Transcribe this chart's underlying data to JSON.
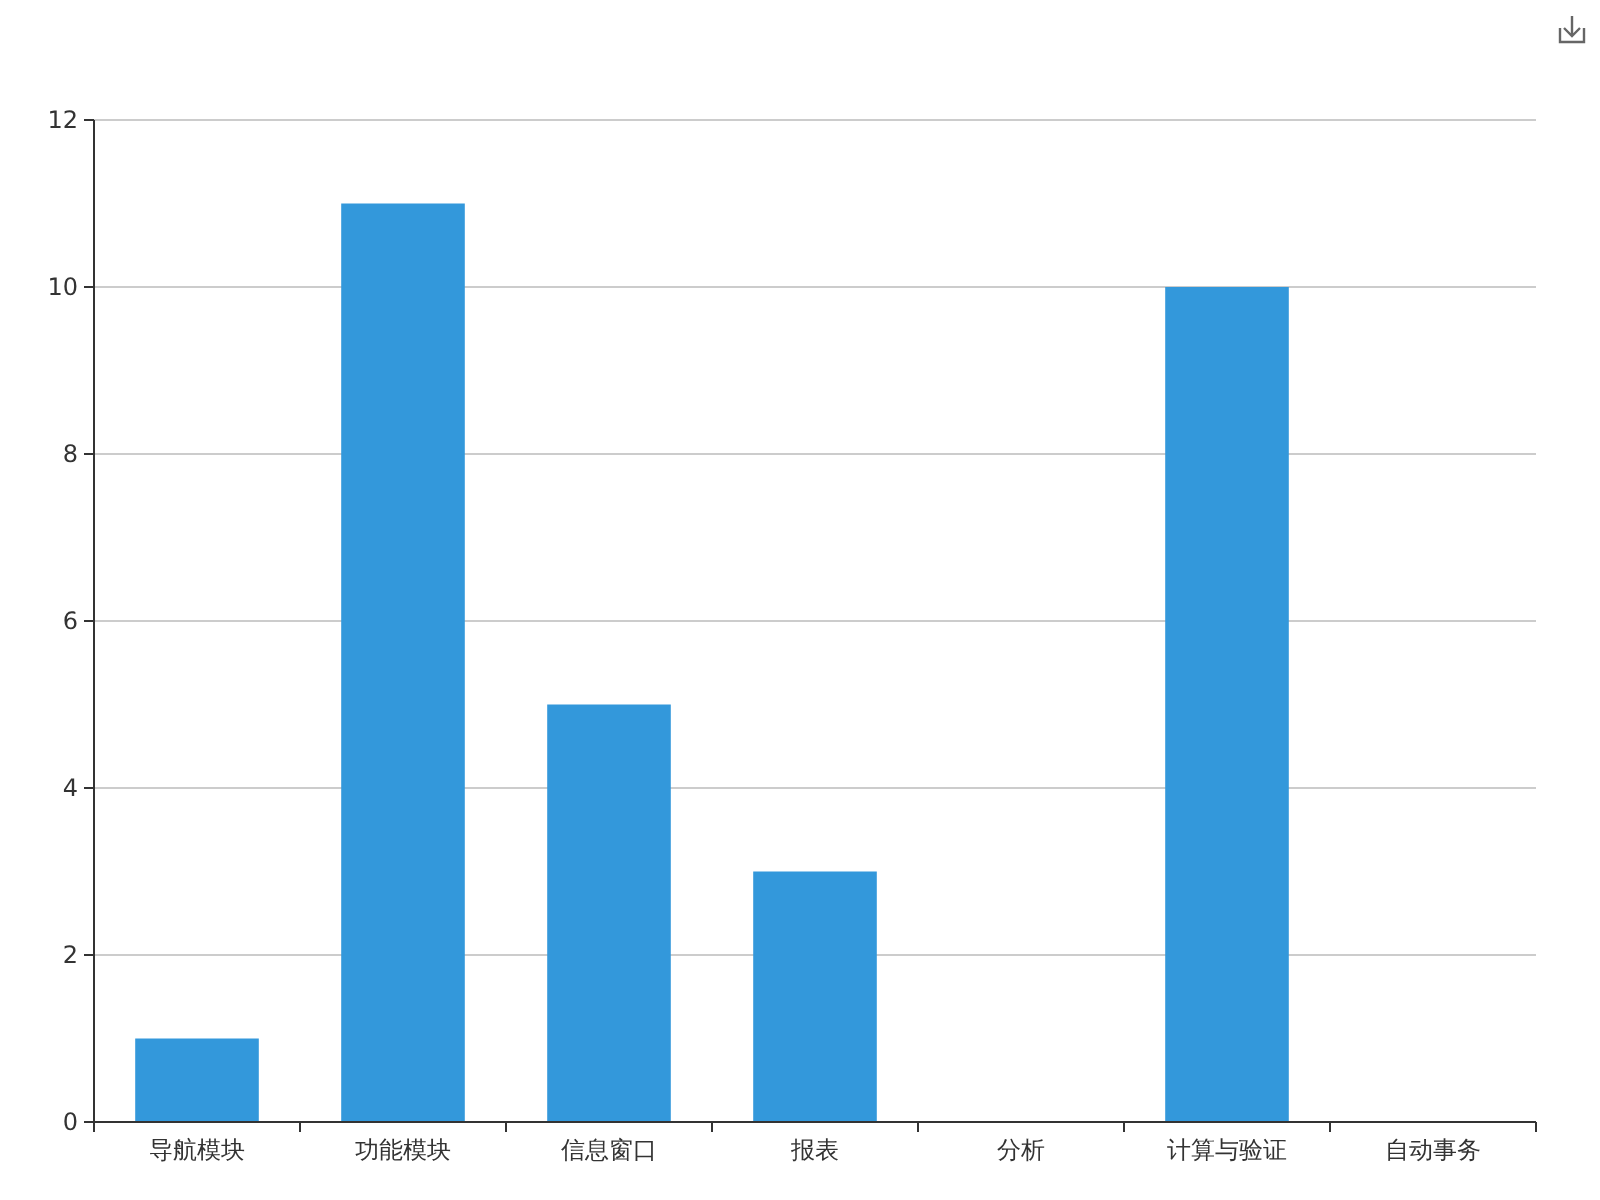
{
  "chart_data": {
    "type": "bar",
    "categories": [
      "导航模块",
      "功能模块",
      "信息窗口",
      "报表",
      "分析",
      "计算与验证",
      "自动事务"
    ],
    "values": [
      1,
      11,
      5,
      3,
      0,
      10,
      0
    ],
    "color": "#3398db",
    "ylim": [
      0,
      12
    ],
    "yticks": [
      0,
      2,
      4,
      6,
      8,
      10,
      12
    ],
    "grid": "y"
  }
}
